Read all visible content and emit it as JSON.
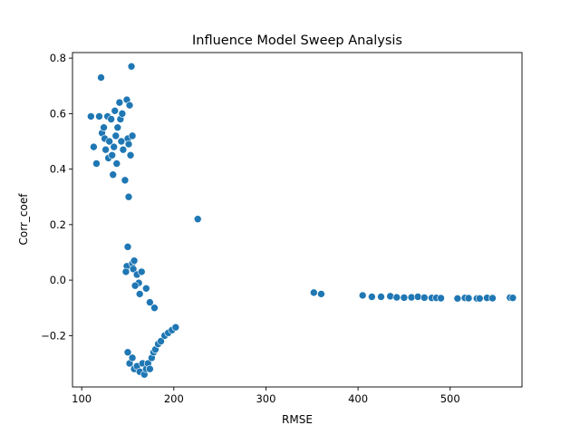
{
  "chart_data": {
    "type": "scatter",
    "title": "Influence Model Sweep Analysis",
    "xlabel": "RMSE",
    "ylabel": "Corr_coef",
    "xlim": [
      90,
      578
    ],
    "ylim": [
      -0.385,
      0.82
    ],
    "xticks": [
      100,
      200,
      300,
      400,
      500
    ],
    "yticks": [
      -0.2,
      0.0,
      0.2,
      0.4,
      0.6,
      0.8
    ],
    "ytick_labels": [
      "−0.2",
      "0.0",
      "0.2",
      "0.4",
      "0.6",
      "0.8"
    ],
    "grid": false,
    "legend": "none",
    "marker_color": "#1f77b4",
    "marker_edge": "#ffffff",
    "points": [
      [
        110,
        0.59
      ],
      [
        113,
        0.48
      ],
      [
        116,
        0.42
      ],
      [
        119,
        0.59
      ],
      [
        121,
        0.73
      ],
      [
        122,
        0.53
      ],
      [
        124,
        0.55
      ],
      [
        125,
        0.51
      ],
      [
        126,
        0.47
      ],
      [
        128,
        0.59
      ],
      [
        129,
        0.44
      ],
      [
        130,
        0.5
      ],
      [
        132,
        0.58
      ],
      [
        133,
        0.45
      ],
      [
        134,
        0.38
      ],
      [
        135,
        0.48
      ],
      [
        136,
        0.61
      ],
      [
        137,
        0.52
      ],
      [
        138,
        0.42
      ],
      [
        139,
        0.55
      ],
      [
        141,
        0.64
      ],
      [
        142,
        0.58
      ],
      [
        143,
        0.5
      ],
      [
        144,
        0.6
      ],
      [
        145,
        0.47
      ],
      [
        147,
        0.36
      ],
      [
        149,
        0.65
      ],
      [
        150,
        0.51
      ],
      [
        151,
        0.49
      ],
      [
        152,
        0.63
      ],
      [
        154,
        0.77
      ],
      [
        155,
        0.52
      ],
      [
        153,
        0.45
      ],
      [
        151,
        0.3
      ],
      [
        150,
        0.12
      ],
      [
        149,
        0.05
      ],
      [
        148,
        0.03
      ],
      [
        155,
        0.06
      ],
      [
        156,
        0.04
      ],
      [
        157,
        0.07
      ],
      [
        160,
        0.02
      ],
      [
        162,
        -0.01
      ],
      [
        165,
        0.03
      ],
      [
        158,
        -0.02
      ],
      [
        163,
        -0.05
      ],
      [
        170,
        -0.03
      ],
      [
        174,
        -0.08
      ],
      [
        179,
        -0.1
      ],
      [
        226,
        0.22
      ],
      [
        150,
        -0.26
      ],
      [
        152,
        -0.3
      ],
      [
        155,
        -0.28
      ],
      [
        157,
        -0.32
      ],
      [
        160,
        -0.31
      ],
      [
        163,
        -0.33
      ],
      [
        166,
        -0.3
      ],
      [
        168,
        -0.34
      ],
      [
        170,
        -0.32
      ],
      [
        172,
        -0.3
      ],
      [
        174,
        -0.32
      ],
      [
        176,
        -0.28
      ],
      [
        178,
        -0.26
      ],
      [
        180,
        -0.25
      ],
      [
        183,
        -0.23
      ],
      [
        186,
        -0.22
      ],
      [
        190,
        -0.2
      ],
      [
        194,
        -0.19
      ],
      [
        198,
        -0.18
      ],
      [
        202,
        -0.17
      ],
      [
        352,
        -0.045
      ],
      [
        360,
        -0.05
      ],
      [
        405,
        -0.055
      ],
      [
        415,
        -0.06
      ],
      [
        425,
        -0.06
      ],
      [
        435,
        -0.058
      ],
      [
        442,
        -0.062
      ],
      [
        450,
        -0.063
      ],
      [
        458,
        -0.062
      ],
      [
        465,
        -0.06
      ],
      [
        472,
        -0.063
      ],
      [
        480,
        -0.064
      ],
      [
        485,
        -0.064
      ],
      [
        490,
        -0.065
      ],
      [
        508,
        -0.066
      ],
      [
        516,
        -0.064
      ],
      [
        520,
        -0.065
      ],
      [
        529,
        -0.066
      ],
      [
        532,
        -0.066
      ],
      [
        540,
        -0.064
      ],
      [
        546,
        -0.065
      ],
      [
        565,
        -0.063
      ],
      [
        568,
        -0.064
      ]
    ]
  }
}
